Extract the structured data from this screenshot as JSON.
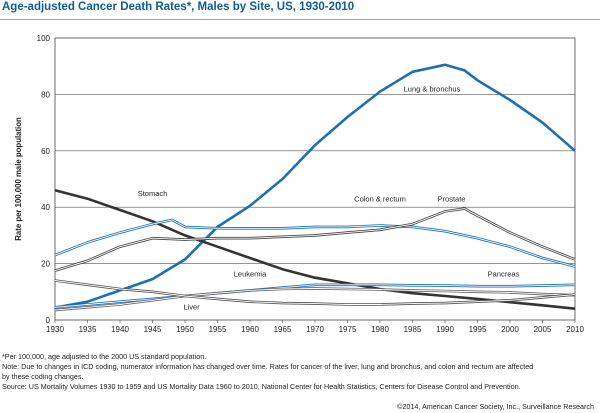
{
  "chart_data": {
    "type": "line",
    "title": "Age-adjusted Cancer Death Rates*, Males by Site, US, 1930-2010",
    "ylabel": "Rate per 100,000 male population",
    "xlabel": "",
    "xlim": [
      1930,
      2010
    ],
    "ylim": [
      0,
      100
    ],
    "x_ticks": [
      "1930",
      "1935",
      "1940",
      "1945",
      "1950",
      "1955",
      "1960",
      "1965",
      "1970",
      "1975",
      "1980",
      "1985",
      "1990",
      "1995",
      "2000",
      "2005",
      "2010"
    ],
    "y_ticks": [
      "0",
      "20",
      "40",
      "60",
      "80",
      "100"
    ],
    "grid": "horizontal",
    "legend": "inline labels",
    "series": [
      {
        "name": "Lung & bronchus",
        "color": "#1a6fb8",
        "style": "solid",
        "points": [
          [
            1930,
            4.4
          ],
          [
            1935,
            6.5
          ],
          [
            1940,
            10.5
          ],
          [
            1945,
            14.5
          ],
          [
            1950,
            21.5
          ],
          [
            1955,
            33
          ],
          [
            1960,
            40.5
          ],
          [
            1965,
            50
          ],
          [
            1970,
            62
          ],
          [
            1975,
            72
          ],
          [
            1980,
            81
          ],
          [
            1985,
            88
          ],
          [
            1990,
            90.5
          ],
          [
            1993,
            88.5
          ],
          [
            1995,
            85
          ],
          [
            2000,
            78
          ],
          [
            2005,
            70
          ],
          [
            2010,
            60
          ]
        ]
      },
      {
        "name": "Stomach",
        "color": "#333333",
        "style": "solid",
        "points": [
          [
            1930,
            46
          ],
          [
            1935,
            43
          ],
          [
            1940,
            39
          ],
          [
            1945,
            35
          ],
          [
            1950,
            30
          ],
          [
            1955,
            26
          ],
          [
            1960,
            22
          ],
          [
            1965,
            18
          ],
          [
            1970,
            15
          ],
          [
            1975,
            13
          ],
          [
            1980,
            11
          ],
          [
            1985,
            9.5
          ],
          [
            1990,
            8.5
          ],
          [
            1995,
            7.5
          ],
          [
            2000,
            6.3
          ],
          [
            2005,
            5.2
          ],
          [
            2010,
            4
          ]
        ]
      },
      {
        "name": "Colon & rectum",
        "color": "#1a6fb8",
        "style": "double",
        "points": [
          [
            1930,
            23
          ],
          [
            1935,
            27.5
          ],
          [
            1940,
            31
          ],
          [
            1945,
            34
          ],
          [
            1948,
            35.5
          ],
          [
            1950,
            33
          ],
          [
            1955,
            32.5
          ],
          [
            1960,
            32.5
          ],
          [
            1965,
            32.5
          ],
          [
            1970,
            33
          ],
          [
            1975,
            33
          ],
          [
            1980,
            33.5
          ],
          [
            1985,
            33
          ],
          [
            1990,
            31.5
          ],
          [
            1995,
            29
          ],
          [
            2000,
            26
          ],
          [
            2005,
            22
          ],
          [
            2010,
            19
          ]
        ]
      },
      {
        "name": "Prostate",
        "color": "#444444",
        "style": "double",
        "points": [
          [
            1930,
            17.5
          ],
          [
            1935,
            21
          ],
          [
            1940,
            26
          ],
          [
            1945,
            29
          ],
          [
            1950,
            28.5
          ],
          [
            1955,
            29
          ],
          [
            1960,
            29
          ],
          [
            1965,
            29.5
          ],
          [
            1970,
            30
          ],
          [
            1975,
            31
          ],
          [
            1980,
            32
          ],
          [
            1985,
            34
          ],
          [
            1990,
            38.5
          ],
          [
            1993,
            39.5
          ],
          [
            1995,
            37
          ],
          [
            2000,
            31
          ],
          [
            2005,
            26
          ],
          [
            2010,
            21.5
          ]
        ]
      },
      {
        "name": "Pancreas",
        "color": "#1a6fb8",
        "style": "double",
        "points": [
          [
            1930,
            4.5
          ],
          [
            1935,
            5.5
          ],
          [
            1940,
            6.5
          ],
          [
            1945,
            7.5
          ],
          [
            1950,
            8.5
          ],
          [
            1955,
            9.5
          ],
          [
            1960,
            10.5
          ],
          [
            1965,
            11.5
          ],
          [
            1970,
            12.5
          ],
          [
            1975,
            12.5
          ],
          [
            1980,
            12.5
          ],
          [
            1985,
            12.3
          ],
          [
            1990,
            12.2
          ],
          [
            1995,
            12
          ],
          [
            2000,
            12
          ],
          [
            2005,
            12.2
          ],
          [
            2010,
            12.5
          ]
        ]
      },
      {
        "name": "Leukemia",
        "color": "#666666",
        "style": "double",
        "points": [
          [
            1930,
            3.5
          ],
          [
            1935,
            4.5
          ],
          [
            1940,
            5.5
          ],
          [
            1945,
            7
          ],
          [
            1950,
            8.5
          ],
          [
            1955,
            9.5
          ],
          [
            1960,
            10.5
          ],
          [
            1965,
            11
          ],
          [
            1970,
            11.2
          ],
          [
            1975,
            11
          ],
          [
            1980,
            10.8
          ],
          [
            1985,
            10.5
          ],
          [
            1990,
            10.3
          ],
          [
            1995,
            10
          ],
          [
            2000,
            9.8
          ],
          [
            2005,
            9.2
          ],
          [
            2010,
            8.8
          ]
        ]
      },
      {
        "name": "Liver",
        "color": "#555555",
        "style": "double",
        "points": [
          [
            1930,
            14
          ],
          [
            1935,
            12.5
          ],
          [
            1940,
            11
          ],
          [
            1945,
            10
          ],
          [
            1950,
            8.5
          ],
          [
            1955,
            7.5
          ],
          [
            1960,
            6.5
          ],
          [
            1965,
            6
          ],
          [
            1970,
            5.8
          ],
          [
            1975,
            5.5
          ],
          [
            1980,
            5.5
          ],
          [
            1985,
            5.8
          ],
          [
            1990,
            6
          ],
          [
            1995,
            6.5
          ],
          [
            2000,
            7
          ],
          [
            2005,
            8
          ],
          [
            2010,
            9
          ]
        ]
      }
    ],
    "annotations": [
      {
        "text": "Lung & bronchus",
        "x": 1988,
        "y": 81
      },
      {
        "text": "Stomach",
        "x": 1945,
        "y": 44
      },
      {
        "text": "Colon & rectum",
        "x": 1980,
        "y": 42
      },
      {
        "text": "Prostate",
        "x": 1991,
        "y": 42
      },
      {
        "text": "Pancreas",
        "x": 1999,
        "y": 15.5
      },
      {
        "text": "Leukemia",
        "x": 1960,
        "y": 15.5
      },
      {
        "text": "Liver",
        "x": 1951,
        "y": 3.8
      }
    ]
  },
  "notes": [
    "*Per 100,000, age adjusted to the 2000 US standard population.",
    "Note: Due to changes in ICD coding, numerator information has changed over time. Rates for cancer of the liver, lung and bronchus, and colon and rectum are affected",
    "by these coding changes.",
    "Source: US Mortality Volumes 1930 to 1959 and US Mortality Data 1960 to 2010, National Center for Health Statistics, Centers for Disease Control and Prevention."
  ],
  "credit": "©2014, American Cancer Society, Inc., Surveillance Research"
}
